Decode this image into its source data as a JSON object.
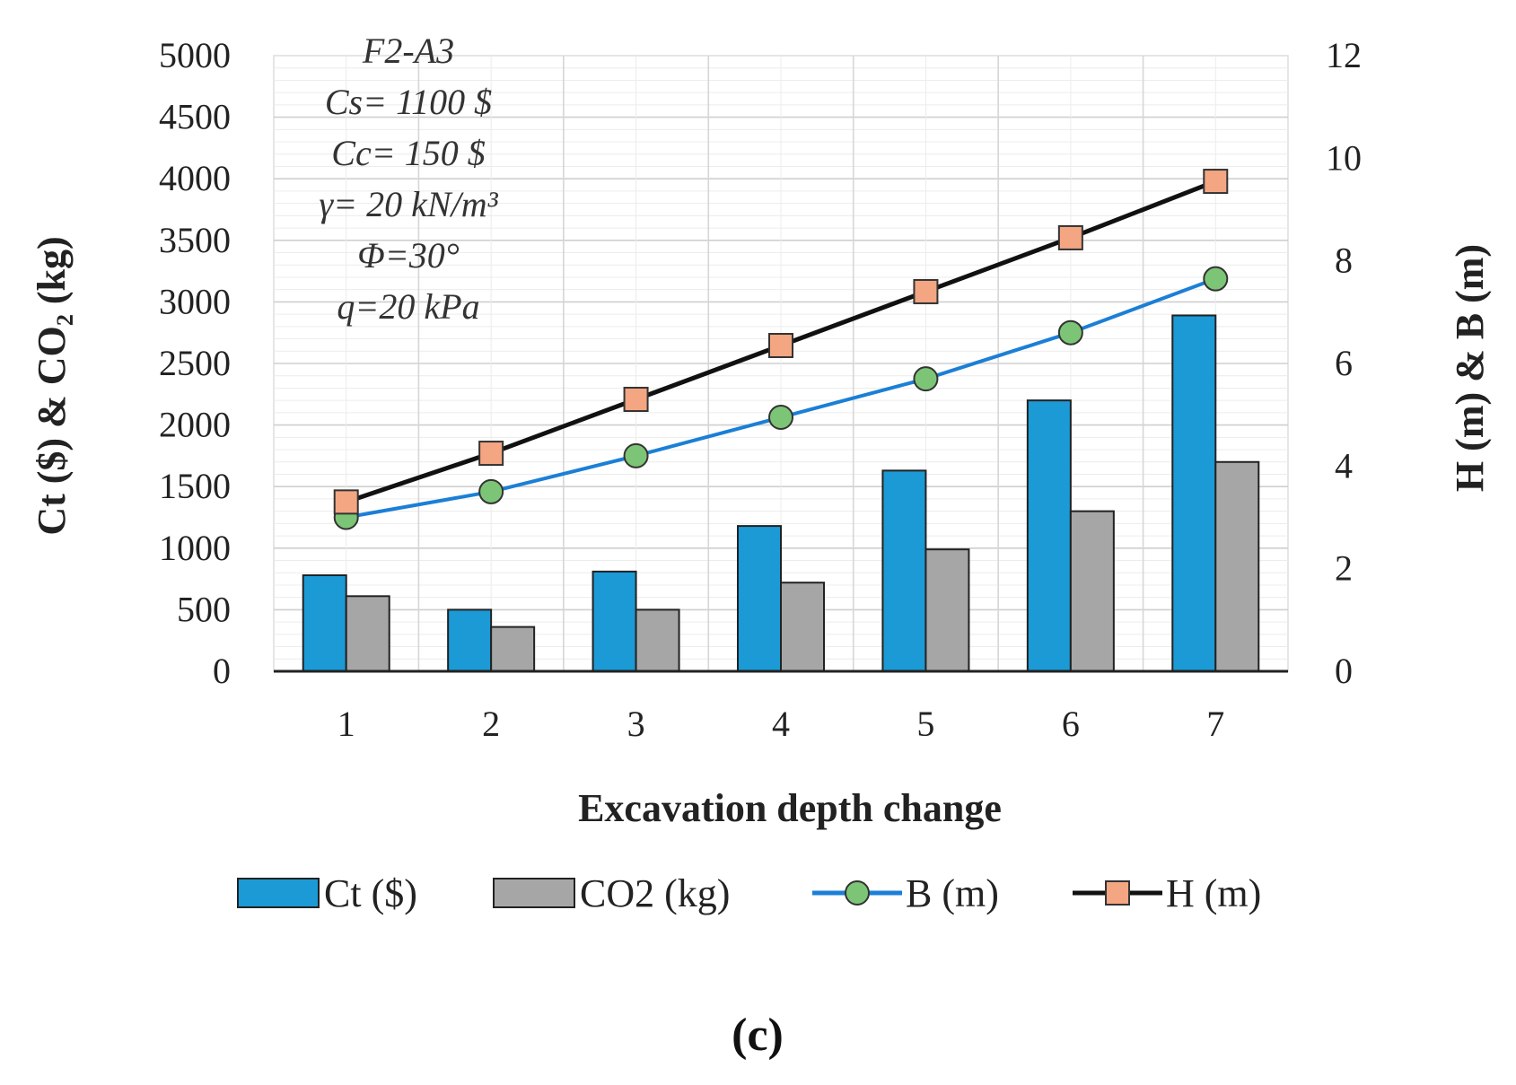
{
  "chart_data": {
    "type": "bar",
    "categories": [
      "1",
      "2",
      "3",
      "4",
      "5",
      "6",
      "7"
    ],
    "series": [
      {
        "name": "Ct ($)",
        "type": "bar",
        "axis": "left",
        "color": "#1b9ad6",
        "values": [
          780,
          500,
          810,
          1180,
          1630,
          2200,
          2890
        ]
      },
      {
        "name": "CO2 (kg)",
        "type": "bar",
        "axis": "left",
        "color": "#a6a6a6",
        "values": [
          610,
          360,
          500,
          720,
          990,
          1300,
          1700
        ]
      },
      {
        "name": "B (m)",
        "type": "line",
        "axis": "right",
        "color": "#1b7fd6",
        "marker": "circle",
        "marker_color": "#7cc576",
        "values": [
          3.0,
          3.5,
          4.2,
          4.95,
          5.7,
          6.6,
          7.65
        ]
      },
      {
        "name": "H (m)",
        "type": "line",
        "axis": "right",
        "color": "#111111",
        "marker": "square",
        "marker_color": "#f4a582",
        "values": [
          3.3,
          4.25,
          5.3,
          6.35,
          7.4,
          8.45,
          9.55
        ]
      }
    ],
    "xlabel": "Excavation depth change",
    "ylabel_left": "Ct ($) & CO₂ (kg)",
    "ylabel_right": "H (m) & B (m)",
    "ylim_left": [
      0,
      5000
    ],
    "ylim_right": [
      0,
      12
    ],
    "yticks_left": [
      "0",
      "500",
      "1000",
      "1500",
      "2000",
      "2500",
      "3000",
      "3500",
      "4000",
      "4500",
      "5000"
    ],
    "yticks_right": [
      "0",
      "2",
      "4",
      "6",
      "8",
      "10",
      "12"
    ],
    "grid": true,
    "legend_position": "bottom",
    "annotations": [
      "F2-A3",
      "Cs= 1100 $",
      "Cc= 150 $",
      "γ= 20 kN/m³",
      "Φ=30°",
      "q=20 kPa"
    ],
    "panel_label": "(c)"
  }
}
